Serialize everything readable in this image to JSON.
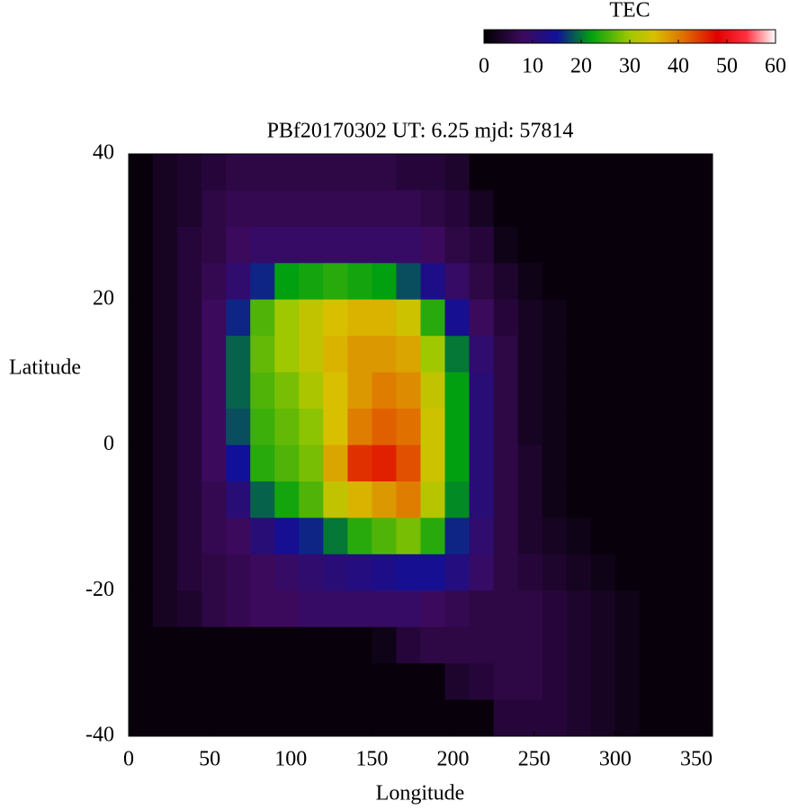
{
  "chart_data": {
    "type": "heatmap",
    "title": "PBf20170302  UT: 6.25  mjd: 57814",
    "xlabel": "Longitude",
    "ylabel": "Latitude",
    "colorbar_label": "TEC",
    "xlim": [
      0,
      360
    ],
    "ylim": [
      -40,
      40
    ],
    "xticks": [
      0,
      50,
      100,
      150,
      200,
      250,
      300,
      350
    ],
    "yticks": [
      -40,
      -20,
      0,
      20,
      40
    ],
    "clim": [
      0,
      60
    ],
    "cticks": [
      0,
      10,
      20,
      30,
      40,
      50,
      60
    ],
    "colorscale": [
      [
        0,
        "#000000"
      ],
      [
        8,
        "#3c0a5c"
      ],
      [
        15,
        "#10109a"
      ],
      [
        22,
        "#00a010"
      ],
      [
        30,
        "#a0c800"
      ],
      [
        35,
        "#d8c000"
      ],
      [
        41,
        "#e07000"
      ],
      [
        48,
        "#e00000"
      ],
      [
        54,
        "#ff3040"
      ],
      [
        60,
        "#ffffff"
      ]
    ],
    "x": [
      7.5,
      22.5,
      37.5,
      52.5,
      67.5,
      82.5,
      97.5,
      112.5,
      127.5,
      142.5,
      157.5,
      172.5,
      187.5,
      202.5,
      217.5,
      232.5,
      247.5,
      262.5,
      277.5,
      292.5,
      307.5,
      322.5,
      337.5,
      352.5
    ],
    "y": [
      37.5,
      32.5,
      27.5,
      22.5,
      17.5,
      12.5,
      7.5,
      2.5,
      -2.5,
      -7.5,
      -12.5,
      -17.5,
      -22.5,
      -27.5,
      -32.5,
      -37.5
    ],
    "z": [
      [
        1,
        3,
        4,
        5,
        6,
        6,
        6,
        6,
        6,
        6,
        6,
        5,
        5,
        4,
        1,
        1,
        1,
        1,
        1,
        1,
        1,
        1,
        1,
        1
      ],
      [
        1,
        3,
        4,
        6,
        7,
        7,
        7,
        7,
        7,
        7,
        7,
        7,
        6,
        5,
        3,
        1,
        1,
        1,
        1,
        1,
        1,
        1,
        1,
        1
      ],
      [
        1,
        3,
        5,
        6,
        8,
        9,
        9,
        9,
        9,
        9,
        9,
        9,
        8,
        6,
        5,
        2,
        1,
        1,
        1,
        1,
        1,
        1,
        1,
        1
      ],
      [
        1,
        3,
        5,
        7,
        10,
        16,
        22,
        23,
        24,
        23,
        22,
        18,
        13,
        9,
        6,
        4,
        2,
        1,
        1,
        1,
        1,
        1,
        1,
        1
      ],
      [
        1,
        3,
        5,
        8,
        16,
        26,
        30,
        33,
        35,
        36,
        36,
        34,
        24,
        14,
        8,
        5,
        3,
        2,
        1,
        1,
        1,
        1,
        1,
        1
      ],
      [
        1,
        3,
        5,
        8,
        19,
        27,
        30,
        33,
        36,
        38,
        38,
        37,
        30,
        20,
        10,
        6,
        3,
        2,
        1,
        1,
        1,
        1,
        1,
        1
      ],
      [
        1,
        3,
        5,
        8,
        19,
        26,
        28,
        31,
        35,
        38,
        40,
        39,
        33,
        22,
        11,
        6,
        3,
        2,
        1,
        1,
        1,
        1,
        1,
        1
      ],
      [
        1,
        3,
        5,
        8,
        18,
        25,
        27,
        29,
        35,
        40,
        42,
        41,
        34,
        22,
        11,
        6,
        3,
        2,
        1,
        1,
        1,
        1,
        1,
        1
      ],
      [
        1,
        3,
        5,
        8,
        15,
        24,
        26,
        28,
        37,
        45,
        46,
        43,
        34,
        22,
        11,
        6,
        4,
        2,
        1,
        1,
        1,
        1,
        1,
        1
      ],
      [
        1,
        3,
        5,
        7,
        11,
        19,
        23,
        26,
        33,
        36,
        38,
        40,
        32,
        21,
        11,
        6,
        4,
        2,
        1,
        1,
        1,
        1,
        1,
        1
      ],
      [
        1,
        3,
        5,
        7,
        8,
        11,
        14,
        16,
        20,
        24,
        26,
        28,
        24,
        16,
        10,
        6,
        4,
        3,
        2,
        1,
        1,
        1,
        1,
        1
      ],
      [
        1,
        3,
        5,
        6,
        7,
        8,
        9,
        10,
        11,
        12,
        13,
        14,
        14,
        12,
        9,
        6,
        5,
        4,
        3,
        2,
        1,
        1,
        1,
        1
      ],
      [
        1,
        3,
        4,
        6,
        7,
        8,
        8,
        9,
        9,
        9,
        9,
        9,
        8,
        7,
        6,
        6,
        6,
        5,
        4,
        3,
        2,
        1,
        1,
        1
      ],
      [
        1,
        1,
        1,
        1,
        1,
        1,
        1,
        1,
        1,
        1,
        2,
        5,
        6,
        6,
        6,
        6,
        6,
        5,
        4,
        3,
        2,
        1,
        1,
        1
      ],
      [
        1,
        1,
        1,
        1,
        1,
        1,
        1,
        1,
        1,
        1,
        1,
        1,
        1,
        4,
        5,
        6,
        6,
        5,
        4,
        3,
        2,
        1,
        1,
        1
      ],
      [
        1,
        1,
        1,
        1,
        1,
        1,
        1,
        1,
        1,
        1,
        1,
        1,
        1,
        1,
        1,
        5,
        5,
        5,
        4,
        3,
        2,
        1,
        1,
        1
      ]
    ]
  }
}
